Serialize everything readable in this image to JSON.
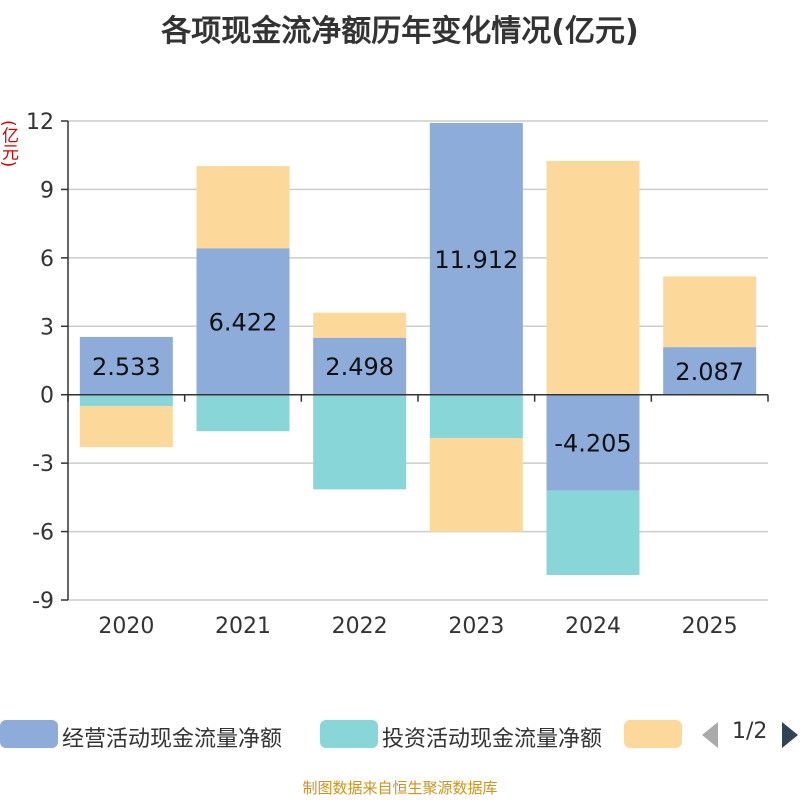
{
  "title": "各项现金流净额历年变化情况(亿元)",
  "unit": "(亿元)",
  "source": "制图数据来自恒生聚源数据库",
  "legend_page": "1/2",
  "colors": {
    "operating": "#8eacd9",
    "investing": "#88d6d8",
    "financing": "#fcd99a",
    "grid": "#cccccc",
    "axis": "#333333"
  },
  "chart_data": {
    "type": "bar",
    "stacked": true,
    "title": "各项现金流净额历年变化情况(亿元)",
    "ylabel": "(亿元)",
    "ylim": [
      -9,
      12
    ],
    "yticks": [
      12,
      9,
      6,
      3,
      0,
      -3,
      -6,
      -9
    ],
    "categories": [
      "2020",
      "2021",
      "2022",
      "2023",
      "2024",
      "2025"
    ],
    "series": [
      {
        "name": "经营活动现金流量净额",
        "key": "operating",
        "values": [
          2.533,
          6.422,
          2.498,
          11.912,
          -4.205,
          2.087
        ],
        "labels": [
          "2.533",
          "6.422",
          "2.498",
          "11.912",
          "-4.205",
          "2.087"
        ]
      },
      {
        "name": "投资活动现金流量净额",
        "key": "investing",
        "values": [
          -0.5,
          -1.6,
          -4.15,
          -1.9,
          -3.7,
          0.0
        ],
        "labels": null
      },
      {
        "name": "",
        "key": "financing",
        "values": [
          -1.8,
          3.6,
          1.1,
          -4.1,
          10.25,
          3.1
        ],
        "labels": null
      }
    ],
    "legend_position": "bottom"
  }
}
